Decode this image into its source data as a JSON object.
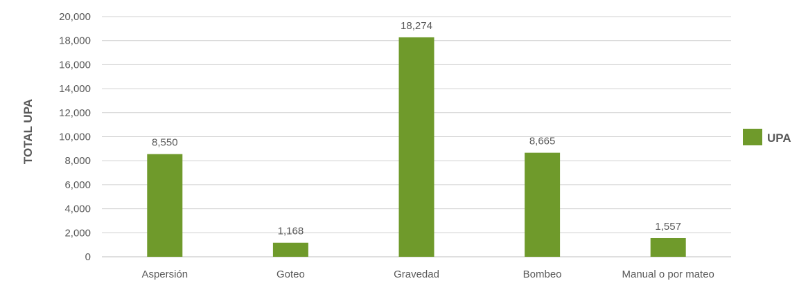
{
  "chart_data": {
    "type": "bar",
    "categories": [
      "Aspersión",
      "Goteo",
      "Gravedad",
      "Bombeo",
      "Manual o por mateo"
    ],
    "series": [
      {
        "name": "UPA",
        "values": [
          8550,
          1168,
          18274,
          8665,
          1557
        ],
        "data_labels": [
          "8,550",
          "1,168",
          "18,274",
          "8,665",
          "1,557"
        ]
      }
    ],
    "ylabel": "TOTAL UPA",
    "xlabel": "",
    "ylim": [
      0,
      20000
    ],
    "yticks": [
      0,
      2000,
      4000,
      6000,
      8000,
      10000,
      12000,
      14000,
      16000,
      18000,
      20000
    ],
    "ytick_labels": [
      "0",
      "2,000",
      "4,000",
      "6,000",
      "8,000",
      "10,000",
      "12,000",
      "14,000",
      "16,000",
      "18,000",
      "20,000"
    ],
    "grid": true,
    "legend_position": "right",
    "colors": {
      "bar": "#6f9a2b",
      "grid": "#d0d0d0",
      "text": "#595959"
    }
  }
}
